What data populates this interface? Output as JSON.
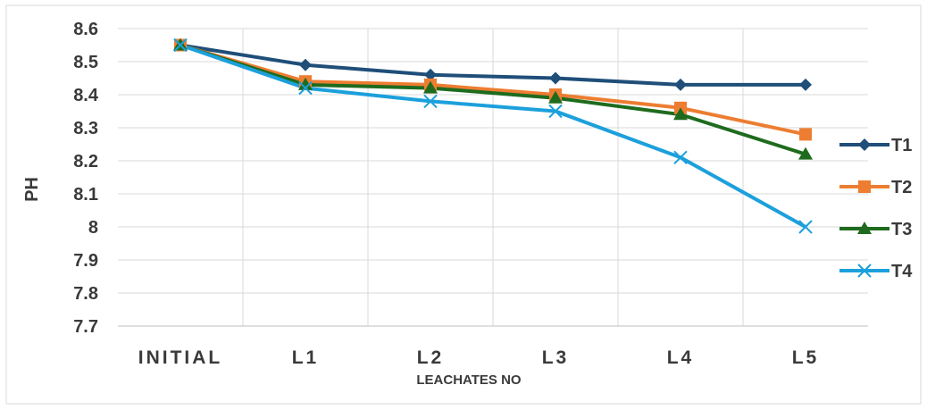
{
  "chart_data": {
    "type": "line",
    "categories": [
      "INITIAL",
      "L1",
      "L2",
      "L3",
      "L4",
      "L5"
    ],
    "series": [
      {
        "name": "T1",
        "values": [
          8.55,
          8.49,
          8.46,
          8.45,
          8.43,
          8.43
        ],
        "color": "#1f4e79",
        "marker": "diamond"
      },
      {
        "name": "T2",
        "values": [
          8.55,
          8.44,
          8.43,
          8.4,
          8.36,
          8.28
        ],
        "color": "#ed7d31",
        "marker": "square"
      },
      {
        "name": "T3",
        "values": [
          8.55,
          8.43,
          8.42,
          8.39,
          8.34,
          8.22
        ],
        "color": "#1e6b1e",
        "marker": "triangle"
      },
      {
        "name": "T4",
        "values": [
          8.55,
          8.42,
          8.38,
          8.35,
          8.21,
          8.0
        ],
        "color": "#1ca0dc",
        "marker": "x"
      }
    ],
    "title": "",
    "xlabel": "LEACHATES NO",
    "ylabel": "PH",
    "ylim": [
      7.7,
      8.6
    ],
    "yticks": [
      "7.7",
      "7.8",
      "7.9",
      "8",
      "8.1",
      "8.2",
      "8.3",
      "8.4",
      "8.5",
      "8.6"
    ],
    "grid": true,
    "legend": "right"
  }
}
